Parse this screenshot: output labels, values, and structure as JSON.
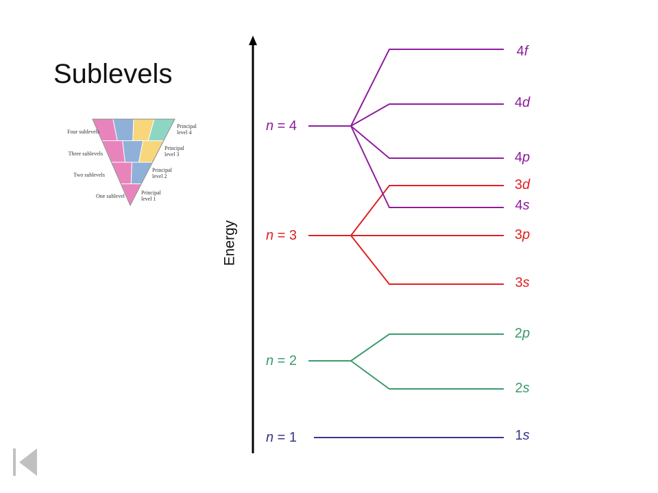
{
  "title": "Sublevels",
  "axis_label": "Energy",
  "inset": {
    "left_labels": [
      "Four sublevels",
      "Three sublevels",
      "Two sublevels",
      "One sublevel"
    ],
    "right_labels": [
      "Principal level 4",
      "Principal level 3",
      "Principal level 2",
      "Principal level 1"
    ]
  },
  "levels": [
    {
      "label": "n = 1",
      "sublevels": [
        {
          "shell": "1",
          "type": "s"
        }
      ]
    },
    {
      "label": "n = 2",
      "sublevels": [
        {
          "shell": "2",
          "type": "s"
        },
        {
          "shell": "2",
          "type": "p"
        }
      ]
    },
    {
      "label": "n = 3",
      "sublevels": [
        {
          "shell": "3",
          "type": "s"
        },
        {
          "shell": "3",
          "type": "p"
        },
        {
          "shell": "3",
          "type": "d"
        }
      ]
    },
    {
      "label": "n = 4",
      "sublevels": [
        {
          "shell": "4",
          "type": "s"
        },
        {
          "shell": "4",
          "type": "p"
        },
        {
          "shell": "4",
          "type": "d"
        },
        {
          "shell": "4",
          "type": "f"
        }
      ]
    }
  ]
}
